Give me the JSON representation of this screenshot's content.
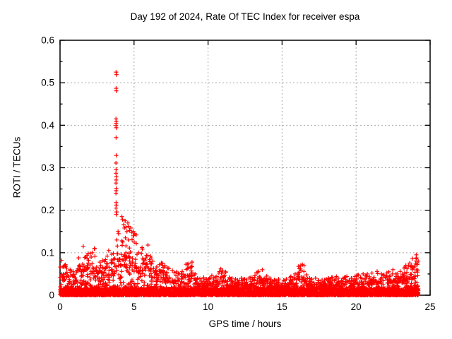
{
  "chart_data": {
    "type": "scatter",
    "title": "Day 192 of 2024, Rate Of TEC Index for receiver espa",
    "xlabel": "GPS time / hours",
    "ylabel": "ROTI / TECUs",
    "xlim": [
      0,
      25
    ],
    "ylim": [
      0,
      0.6
    ],
    "xticks": {
      "values": [
        0,
        5,
        10,
        15,
        20,
        25
      ],
      "labels": [
        "0",
        "5",
        "10",
        "15",
        "20",
        "25"
      ]
    },
    "yticks": {
      "values": [
        0,
        0.1,
        0.2,
        0.3,
        0.4,
        0.5,
        0.6
      ],
      "labels": [
        "0",
        "0.1",
        "0.2",
        "0.3",
        "0.4",
        "0.5",
        "0.6"
      ]
    },
    "y_minor_tick_step": 0.05,
    "grid": true,
    "legend": "none",
    "marker": "plus",
    "marker_color": "#ff0000",
    "grid_color": "#a6a6a6",
    "border_color": "#000000",
    "x_data_end": 24.2,
    "bin_hours": 0.25,
    "baseline_band_max": 0.02,
    "envelope_max_roti": [
      0.082,
      0.072,
      0.06,
      0.056,
      0.062,
      0.088,
      0.115,
      0.098,
      0.1,
      0.11,
      0.078,
      0.082,
      0.092,
      0.105,
      0.098,
      0.13,
      0.128,
      0.135,
      0.13,
      0.14,
      0.125,
      0.1,
      0.112,
      0.118,
      0.092,
      0.08,
      0.072,
      0.076,
      0.07,
      0.064,
      0.058,
      0.055,
      0.05,
      0.056,
      0.074,
      0.078,
      0.05,
      0.04,
      0.042,
      0.038,
      0.04,
      0.046,
      0.052,
      0.062,
      0.055,
      0.042,
      0.04,
      0.038,
      0.04,
      0.038,
      0.036,
      0.042,
      0.046,
      0.056,
      0.06,
      0.045,
      0.04,
      0.036,
      0.035,
      0.038,
      0.035,
      0.038,
      0.044,
      0.05,
      0.068,
      0.072,
      0.048,
      0.04,
      0.038,
      0.04,
      0.036,
      0.038,
      0.04,
      0.042,
      0.044,
      0.04,
      0.042,
      0.044,
      0.04,
      0.044,
      0.048,
      0.05,
      0.046,
      0.05,
      0.052,
      0.056,
      0.05,
      0.048,
      0.055,
      0.06,
      0.05,
      0.056,
      0.064,
      0.07,
      0.076,
      0.086,
      0.095
    ],
    "spike_points": [
      [
        3.79,
        0.525
      ],
      [
        3.81,
        0.519
      ],
      [
        3.79,
        0.487
      ],
      [
        3.8,
        0.481
      ],
      [
        3.78,
        0.415
      ],
      [
        3.8,
        0.409
      ],
      [
        3.79,
        0.404
      ],
      [
        3.78,
        0.399
      ],
      [
        3.8,
        0.394
      ],
      [
        3.79,
        0.371
      ],
      [
        3.8,
        0.329
      ],
      [
        3.78,
        0.311
      ],
      [
        3.79,
        0.296
      ],
      [
        3.78,
        0.287
      ],
      [
        3.8,
        0.279
      ],
      [
        3.79,
        0.271
      ],
      [
        3.78,
        0.264
      ],
      [
        3.8,
        0.251
      ],
      [
        3.79,
        0.246
      ],
      [
        3.78,
        0.24
      ],
      [
        3.79,
        0.218
      ],
      [
        3.8,
        0.212
      ],
      [
        3.78,
        0.205
      ],
      [
        3.82,
        0.196
      ],
      [
        3.8,
        0.19
      ],
      [
        3.92,
        0.15
      ],
      [
        3.95,
        0.145
      ],
      [
        4.18,
        0.185
      ],
      [
        4.22,
        0.178
      ],
      [
        4.3,
        0.166
      ],
      [
        4.35,
        0.158
      ],
      [
        4.4,
        0.175
      ],
      [
        4.45,
        0.16
      ],
      [
        4.52,
        0.15
      ],
      [
        4.58,
        0.17
      ],
      [
        4.63,
        0.162
      ],
      [
        4.7,
        0.152
      ],
      [
        4.78,
        0.158
      ],
      [
        4.85,
        0.148
      ],
      [
        4.95,
        0.15
      ],
      [
        5.05,
        0.145
      ],
      [
        5.15,
        0.142
      ]
    ]
  }
}
